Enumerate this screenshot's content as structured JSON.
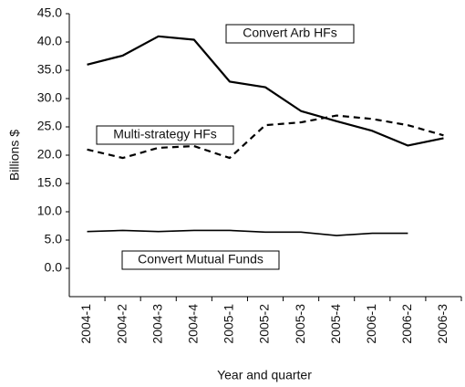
{
  "chart_data": {
    "type": "line",
    "x_label": "Year and quarter",
    "y_label": "Billions $",
    "categories": [
      "2004-1",
      "2004-2",
      "2004-3",
      "2004-4",
      "2005-1",
      "2005-2",
      "2005-3",
      "2005-4",
      "2006-1",
      "2006-2",
      "2006-3"
    ],
    "series": [
      {
        "name": "Convert Arb HFs",
        "color": "#000000",
        "style": "solid",
        "values": [
          36.0,
          37.6,
          41.0,
          40.4,
          33.0,
          32.0,
          27.8,
          26.0,
          24.3,
          21.7,
          23.0
        ]
      },
      {
        "name": "Multi-strategy HFs",
        "color": "#000000",
        "style": "dashed",
        "values": [
          21.0,
          19.5,
          21.3,
          21.6,
          19.5,
          25.3,
          25.8,
          27.0,
          26.4,
          25.3,
          23.5
        ]
      },
      {
        "name": "Convert Mutual Funds",
        "color": "#000000",
        "style": "solid-thin",
        "values": [
          6.5,
          6.7,
          6.5,
          6.7,
          6.7,
          6.4,
          6.4,
          5.8,
          6.2,
          6.2,
          null
        ]
      }
    ],
    "ylim": [
      -5,
      45
    ],
    "yticks": [
      {
        "value": 0,
        "label": "0.0"
      },
      {
        "value": 5,
        "label": "5.0"
      },
      {
        "value": 10,
        "label": "10.0"
      },
      {
        "value": 15,
        "label": "15.0"
      },
      {
        "value": 20,
        "label": "20.0"
      },
      {
        "value": 25,
        "label": "25.0"
      },
      {
        "value": 30,
        "label": "30.0"
      },
      {
        "value": 35,
        "label": "35.0"
      },
      {
        "value": 40,
        "label": "40.0"
      },
      {
        "value": 45,
        "label": "45.0"
      }
    ],
    "grid": false
  }
}
